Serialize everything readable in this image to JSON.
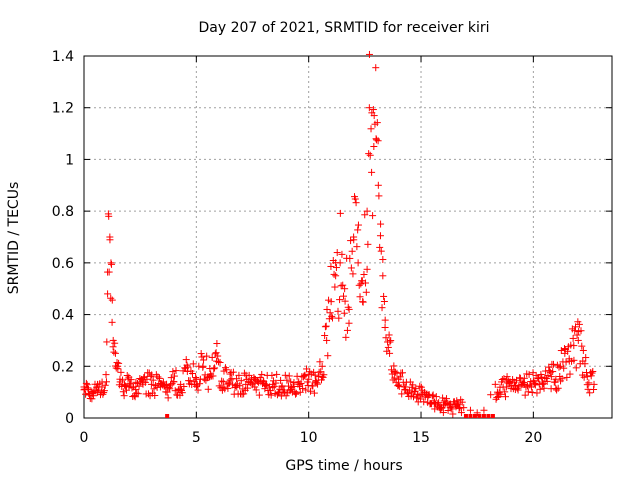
{
  "chart_data": {
    "type": "scatter",
    "title": "Day 207 of 2021, SRMTID for receiver kiri",
    "xlabel": "GPS time / hours",
    "ylabel": "SRMTID / TECUs",
    "xlim": [
      0,
      23.5
    ],
    "ylim": [
      0,
      1.4
    ],
    "x_ticks": [
      0,
      5,
      10,
      15,
      20
    ],
    "x_tick_labels": [
      "0",
      "5",
      "10",
      "15",
      "20"
    ],
    "y_ticks": [
      0,
      0.2,
      0.4,
      0.6,
      0.8,
      1.0,
      1.2,
      1.4
    ],
    "y_tick_labels": [
      "0",
      "0.2",
      "0.4",
      "0.6",
      "0.8",
      "1",
      "1.2",
      "1.4"
    ],
    "grid": true,
    "marker": "plus",
    "color": "#ff0000",
    "series": [
      {
        "name": "SRMTID",
        "x": [
          0.0,
          0.2,
          0.4,
          0.6,
          0.8,
          1.0,
          1.05,
          1.1,
          1.15,
          1.2,
          1.25,
          1.3,
          1.4,
          1.5,
          1.6,
          1.8,
          2.0,
          2.3,
          2.6,
          3.0,
          3.4,
          3.7,
          4.0,
          4.3,
          4.6,
          5.0,
          5.3,
          5.6,
          5.9,
          6.2,
          6.5,
          6.8,
          7.2,
          7.6,
          8.0,
          8.4,
          8.8,
          9.2,
          9.6,
          10.0,
          10.3,
          10.6,
          10.8,
          11.0,
          11.2,
          11.4,
          11.6,
          11.8,
          12.0,
          12.2,
          12.4,
          12.6,
          12.7,
          12.8,
          12.9,
          13.0,
          13.1,
          13.2,
          13.3,
          13.4,
          13.6,
          13.8,
          14.0,
          14.3,
          14.6,
          15.0,
          15.3,
          15.6,
          16.0,
          16.3,
          16.6,
          16.9,
          17.2,
          17.5,
          17.8,
          18.1,
          18.4,
          18.8,
          19.2,
          19.6,
          20.0,
          20.4,
          20.8,
          21.0,
          21.2,
          21.4,
          21.6,
          21.8,
          22.0,
          22.2,
          22.4,
          22.7
        ],
        "y": [
          0.12,
          0.11,
          0.1,
          0.13,
          0.12,
          0.14,
          0.48,
          0.78,
          0.7,
          0.6,
          0.37,
          0.3,
          0.25,
          0.2,
          0.15,
          0.13,
          0.12,
          0.11,
          0.14,
          0.13,
          0.12,
          0.1,
          0.14,
          0.13,
          0.18,
          0.15,
          0.2,
          0.16,
          0.22,
          0.14,
          0.17,
          0.12,
          0.13,
          0.12,
          0.14,
          0.13,
          0.12,
          0.14,
          0.13,
          0.15,
          0.14,
          0.2,
          0.3,
          0.45,
          0.55,
          0.6,
          0.5,
          0.42,
          0.7,
          0.6,
          0.45,
          0.8,
          1.2,
          0.95,
          1.05,
          1.08,
          0.9,
          0.75,
          0.55,
          0.35,
          0.25,
          0.18,
          0.15,
          0.12,
          0.1,
          0.09,
          0.08,
          0.06,
          0.05,
          0.04,
          0.05,
          0.04,
          0.03,
          0.02,
          0.03,
          0.09,
          0.1,
          0.12,
          0.11,
          0.13,
          0.14,
          0.13,
          0.16,
          0.15,
          0.2,
          0.25,
          0.22,
          0.28,
          0.3,
          0.22,
          0.16,
          0.13
        ]
      }
    ],
    "zero_marks_x": [
      3.7,
      17.0,
      17.2,
      17.4,
      17.6,
      17.8,
      18.0,
      18.2
    ]
  }
}
